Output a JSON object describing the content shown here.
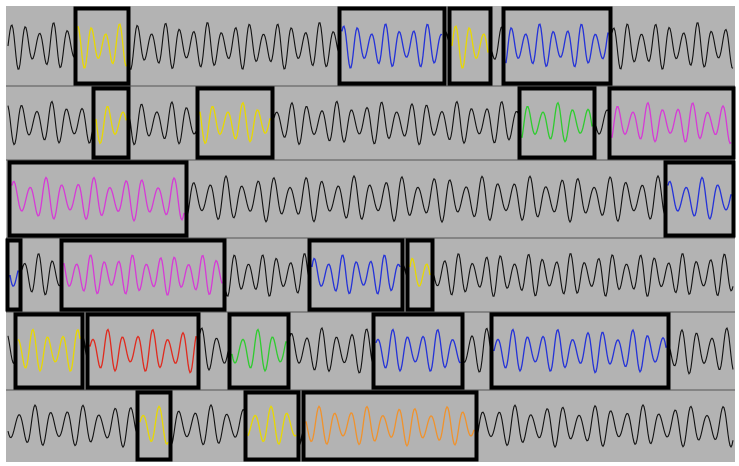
{
  "colors": {
    "background": "#b3b3b3",
    "wave_default": "#111111",
    "box_border": "#000000",
    "row_divider": "#555555",
    "yellow": "#e8d800",
    "blue": "#2432d8",
    "magenta": "#d63ad6",
    "green": "#2ecc2e",
    "red": "#e02a1e",
    "orange": "#f0922c"
  },
  "rows": [
    {
      "id": "row-1",
      "segments": [
        {
          "name": "segment-yellow",
          "color": "yellow"
        },
        {
          "name": "segment-blue",
          "color": "blue"
        },
        {
          "name": "segment-yellow",
          "color": "yellow"
        },
        {
          "name": "segment-blue",
          "color": "blue"
        }
      ]
    },
    {
      "id": "row-2",
      "segments": [
        {
          "name": "segment-yellow",
          "color": "yellow"
        },
        {
          "name": "segment-yellow",
          "color": "yellow"
        },
        {
          "name": "segment-green",
          "color": "green"
        },
        {
          "name": "segment-magenta",
          "color": "magenta"
        }
      ]
    },
    {
      "id": "row-3",
      "segments": [
        {
          "name": "segment-magenta",
          "color": "magenta"
        },
        {
          "name": "segment-blue",
          "color": "blue"
        }
      ]
    },
    {
      "id": "row-4",
      "segments": [
        {
          "name": "segment-blue",
          "color": "blue"
        },
        {
          "name": "segment-magenta",
          "color": "magenta"
        },
        {
          "name": "segment-blue",
          "color": "blue"
        },
        {
          "name": "segment-yellow",
          "color": "yellow"
        }
      ]
    },
    {
      "id": "row-5",
      "segments": [
        {
          "name": "segment-yellow",
          "color": "yellow"
        },
        {
          "name": "segment-red",
          "color": "red"
        },
        {
          "name": "segment-green",
          "color": "green"
        },
        {
          "name": "segment-blue",
          "color": "blue"
        },
        {
          "name": "segment-blue",
          "color": "blue"
        }
      ]
    },
    {
      "id": "row-6",
      "segments": [
        {
          "name": "segment-yellow",
          "color": "yellow"
        },
        {
          "name": "segment-yellow",
          "color": "yellow"
        },
        {
          "name": "segment-orange",
          "color": "orange"
        }
      ]
    }
  ]
}
